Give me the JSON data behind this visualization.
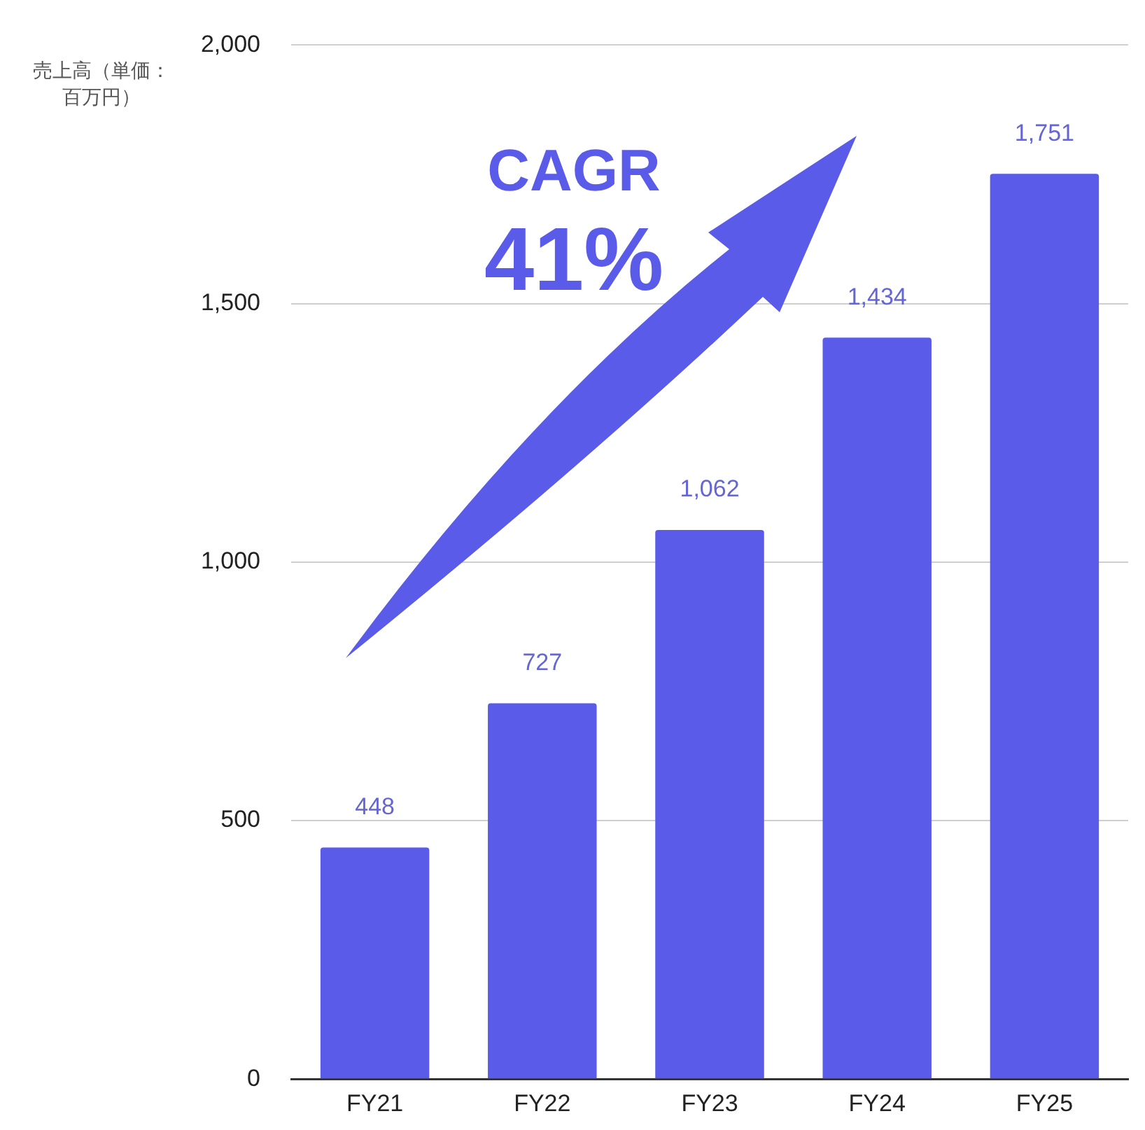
{
  "chart_data": {
    "type": "bar",
    "ylabel": "売上高（単価：百万円）",
    "categories": [
      "FY21",
      "FY22",
      "FY23",
      "FY24",
      "FY25"
    ],
    "values": [
      448,
      727,
      1062,
      1434,
      1751
    ],
    "color": "#5a5be9",
    "ylim": [
      0,
      2000
    ],
    "yticks": [
      0,
      {
        "value": 500,
        "label": "500"
      },
      {
        "value": 1000,
        "label": "1,000"
      },
      {
        "value": 1500,
        "label": "1,500"
      },
      {
        "value": 2000,
        "label": "2,000"
      }
    ],
    "grid": "y",
    "value_labels": [
      "448",
      "727",
      "1,062",
      "1,434",
      "1,751"
    ],
    "annotations": [
      "CAGR",
      "41%"
    ]
  }
}
